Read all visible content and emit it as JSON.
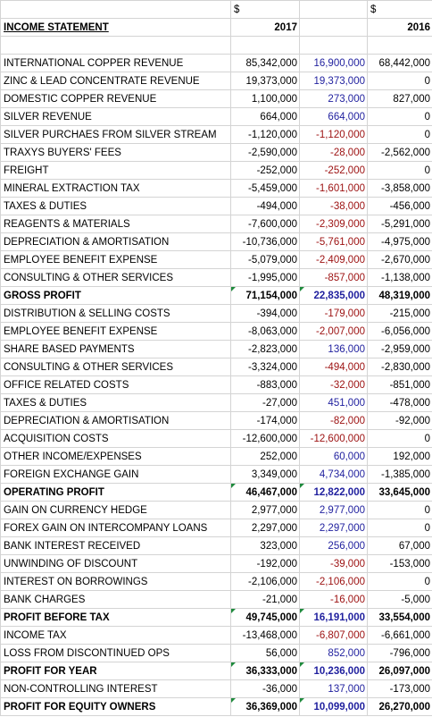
{
  "currency_symbol_2017": "$",
  "currency_symbol_2016": "$",
  "header": {
    "title": "INCOME STATEMENT",
    "year_2017": "2017",
    "year_2016": "2016"
  },
  "rows": [
    {
      "label": "INTERNATIONAL COPPER REVENUE",
      "y2017": "85,342,000",
      "mid": "16,900,000",
      "y2016": "68,442,000",
      "midTone": "pos"
    },
    {
      "label": "ZINC & LEAD CONCENTRATE REVENUE",
      "y2017": "19,373,000",
      "mid": "19,373,000",
      "y2016": "0",
      "midTone": "pos"
    },
    {
      "label": "DOMESTIC COPPER REVENUE",
      "y2017": "1,100,000",
      "mid": "273,000",
      "y2016": "827,000",
      "midTone": "pos"
    },
    {
      "label": "SILVER REVENUE",
      "y2017": "664,000",
      "mid": "664,000",
      "y2016": "0",
      "midTone": "pos"
    },
    {
      "label": "SILVER PURCHAES FROM SILVER STREAM",
      "y2017": "-1,120,000",
      "mid": "-1,120,000",
      "y2016": "0",
      "midTone": "neg"
    },
    {
      "label": "TRAXYS BUYERS' FEES",
      "y2017": "-2,590,000",
      "mid": "-28,000",
      "y2016": "-2,562,000",
      "midTone": "neg"
    },
    {
      "label": "FREIGHT",
      "y2017": "-252,000",
      "mid": "-252,000",
      "y2016": "0",
      "midTone": "neg"
    },
    {
      "label": "MINERAL EXTRACTION TAX",
      "y2017": "-5,459,000",
      "mid": "-1,601,000",
      "y2016": "-3,858,000",
      "midTone": "neg"
    },
    {
      "label": "TAXES & DUTIES",
      "y2017": "-494,000",
      "mid": "-38,000",
      "y2016": "-456,000",
      "midTone": "neg"
    },
    {
      "label": "REAGENTS & MATERIALS",
      "y2017": "-7,600,000",
      "mid": "-2,309,000",
      "y2016": "-5,291,000",
      "midTone": "neg"
    },
    {
      "label": "DEPRECIATION & AMORTISATION",
      "y2017": "-10,736,000",
      "mid": "-5,761,000",
      "y2016": "-4,975,000",
      "midTone": "neg"
    },
    {
      "label": "EMPLOYEE BENEFIT EXPENSE",
      "y2017": "-5,079,000",
      "mid": "-2,409,000",
      "y2016": "-2,670,000",
      "midTone": "neg"
    },
    {
      "label": "CONSULTING & OTHER SERVICES",
      "y2017": "-1,995,000",
      "mid": "-857,000",
      "y2016": "-1,138,000",
      "midTone": "neg"
    },
    {
      "label": "GROSS PROFIT",
      "y2017": "71,154,000",
      "mid": "22,835,000",
      "y2016": "48,319,000",
      "midTone": "pos",
      "bold": true,
      "mark": true
    },
    {
      "label": "DISTRIBUTION & SELLING COSTS",
      "y2017": "-394,000",
      "mid": "-179,000",
      "y2016": "-215,000",
      "midTone": "neg"
    },
    {
      "label": "EMPLOYEE BENEFIT EXPENSE",
      "y2017": "-8,063,000",
      "mid": "-2,007,000",
      "y2016": "-6,056,000",
      "midTone": "neg"
    },
    {
      "label": "SHARE BASED PAYMENTS",
      "y2017": "-2,823,000",
      "mid": "136,000",
      "y2016": "-2,959,000",
      "midTone": "pos"
    },
    {
      "label": "CONSULTING & OTHER SERVICES",
      "y2017": "-3,324,000",
      "mid": "-494,000",
      "y2016": "-2,830,000",
      "midTone": "neg"
    },
    {
      "label": "OFFICE RELATED COSTS",
      "y2017": "-883,000",
      "mid": "-32,000",
      "y2016": "-851,000",
      "midTone": "neg"
    },
    {
      "label": "TAXES & DUTIES",
      "y2017": "-27,000",
      "mid": "451,000",
      "y2016": "-478,000",
      "midTone": "pos"
    },
    {
      "label": "DEPRECIATION & AMORTISATION",
      "y2017": "-174,000",
      "mid": "-82,000",
      "y2016": "-92,000",
      "midTone": "neg"
    },
    {
      "label": "ACQUISITION COSTS",
      "y2017": "-12,600,000",
      "mid": "-12,600,000",
      "y2016": "0",
      "midTone": "neg"
    },
    {
      "label": "OTHER INCOME/EXPENSES",
      "y2017": "252,000",
      "mid": "60,000",
      "y2016": "192,000",
      "midTone": "pos"
    },
    {
      "label": "FOREIGN EXCHANGE GAIN",
      "y2017": "3,349,000",
      "mid": "4,734,000",
      "y2016": "-1,385,000",
      "midTone": "pos"
    },
    {
      "label": "OPERATING PROFIT",
      "y2017": "46,467,000",
      "mid": "12,822,000",
      "y2016": "33,645,000",
      "midTone": "pos",
      "bold": true,
      "mark": true
    },
    {
      "label": "GAIN ON CURRENCY HEDGE",
      "y2017": "2,977,000",
      "mid": "2,977,000",
      "y2016": "0",
      "midTone": "pos"
    },
    {
      "label": "FOREX GAIN ON INTERCOMPANY LOANS",
      "y2017": "2,297,000",
      "mid": "2,297,000",
      "y2016": "0",
      "midTone": "pos"
    },
    {
      "label": "BANK INTEREST RECEIVED",
      "y2017": "323,000",
      "mid": "256,000",
      "y2016": "67,000",
      "midTone": "pos"
    },
    {
      "label": "UNWINDING OF DISCOUNT",
      "y2017": "-192,000",
      "mid": "-39,000",
      "y2016": "-153,000",
      "midTone": "neg"
    },
    {
      "label": "INTEREST ON BORROWINGS",
      "y2017": "-2,106,000",
      "mid": "-2,106,000",
      "y2016": "0",
      "midTone": "neg"
    },
    {
      "label": "BANK CHARGES",
      "y2017": "-21,000",
      "mid": "-16,000",
      "y2016": "-5,000",
      "midTone": "neg"
    },
    {
      "label": "PROFIT BEFORE TAX",
      "y2017": "49,745,000",
      "mid": "16,191,000",
      "y2016": "33,554,000",
      "midTone": "pos",
      "bold": true,
      "mark": true
    },
    {
      "label": "INCOME TAX",
      "y2017": "-13,468,000",
      "mid": "-6,807,000",
      "y2016": "-6,661,000",
      "midTone": "neg"
    },
    {
      "label": "LOSS FROM DISCONTINUED OPS",
      "y2017": "56,000",
      "mid": "852,000",
      "y2016": "-796,000",
      "midTone": "pos"
    },
    {
      "label": "PROFIT FOR YEAR",
      "y2017": "36,333,000",
      "mid": "10,236,000",
      "y2016": "26,097,000",
      "midTone": "pos",
      "bold": true,
      "mark": true
    },
    {
      "label": "NON-CONTROLLING INTEREST",
      "y2017": "-36,000",
      "mid": "137,000",
      "y2016": "-173,000",
      "midTone": "pos"
    },
    {
      "label": "PROFIT FOR EQUITY OWNERS",
      "y2017": "36,369,000",
      "mid": "10,099,000",
      "y2016": "26,270,000",
      "midTone": "pos",
      "bold": true,
      "mark": true
    }
  ],
  "colors": {
    "positive_change": "#1f1f9e",
    "negative_change": "#9c1010",
    "cell_marker": "#1e8a3c"
  }
}
